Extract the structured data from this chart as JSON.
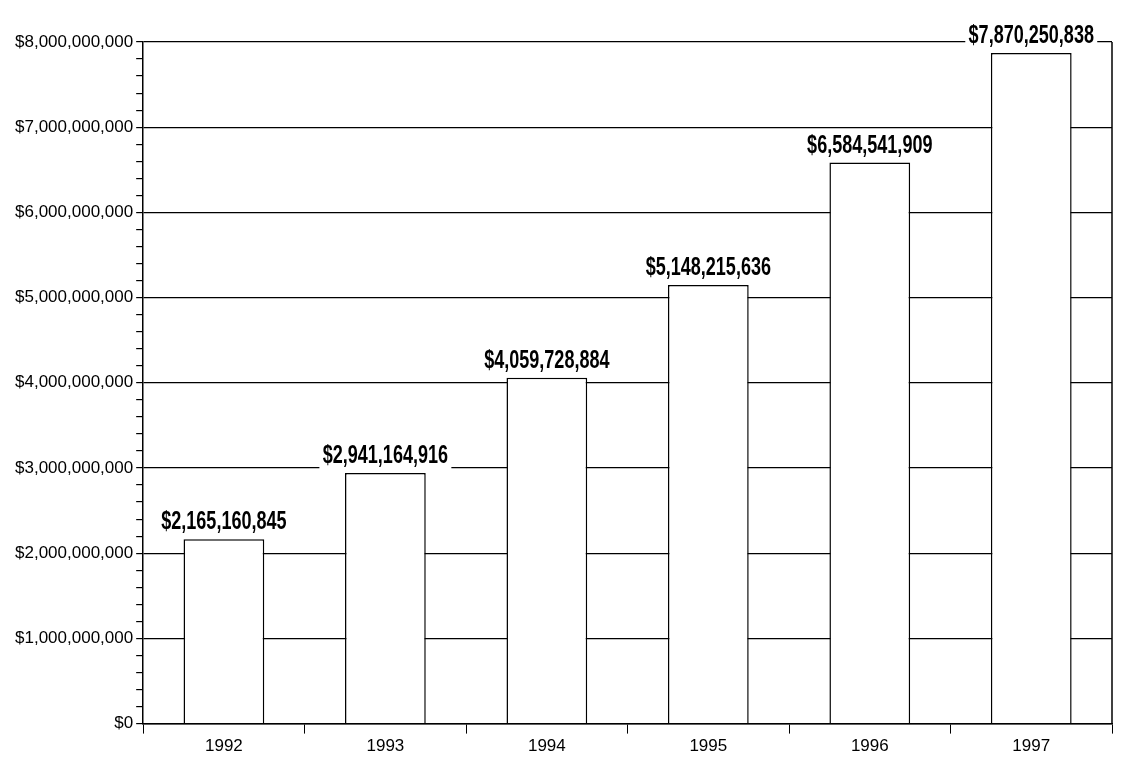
{
  "chart_data": {
    "type": "bar",
    "categories": [
      "1992",
      "1993",
      "1994",
      "1995",
      "1996",
      "1997"
    ],
    "values": [
      2165160845,
      2941164916,
      4059728884,
      5148215636,
      6584541909,
      7870250838
    ],
    "value_labels": [
      "$2,165,160,845",
      "$2,941,164,916",
      "$4,059,728,884",
      "$5,148,215,636",
      "$6,584,541,909",
      "$7,870,250,838"
    ],
    "color": "#ffffff",
    "ylim": [
      0,
      8000000000
    ],
    "yticks": [
      {
        "value": 0,
        "label": "$0"
      },
      {
        "value": 200000000,
        "label": null
      },
      {
        "value": 400000000,
        "label": null
      },
      {
        "value": 600000000,
        "label": null
      },
      {
        "value": 800000000,
        "label": null
      },
      {
        "value": 1000000000,
        "label": "$1,000,000,000"
      },
      {
        "value": 1200000000,
        "label": null
      },
      {
        "value": 1400000000,
        "label": null
      },
      {
        "value": 1600000000,
        "label": null
      },
      {
        "value": 1800000000,
        "label": null
      },
      {
        "value": 2000000000,
        "label": "$2,000,000,000"
      },
      {
        "value": 2200000000,
        "label": null
      },
      {
        "value": 2400000000,
        "label": null
      },
      {
        "value": 2600000000,
        "label": null
      },
      {
        "value": 2800000000,
        "label": null
      },
      {
        "value": 3000000000,
        "label": "$3,000,000,000"
      },
      {
        "value": 3200000000,
        "label": null
      },
      {
        "value": 3400000000,
        "label": null
      },
      {
        "value": 3600000000,
        "label": null
      },
      {
        "value": 3800000000,
        "label": null
      },
      {
        "value": 4000000000,
        "label": "$4,000,000,000"
      },
      {
        "value": 4200000000,
        "label": null
      },
      {
        "value": 4400000000,
        "label": null
      },
      {
        "value": 4600000000,
        "label": null
      },
      {
        "value": 4800000000,
        "label": null
      },
      {
        "value": 5000000000,
        "label": "$5,000,000,000"
      },
      {
        "value": 5200000000,
        "label": null
      },
      {
        "value": 5400000000,
        "label": null
      },
      {
        "value": 5600000000,
        "label": null
      },
      {
        "value": 5800000000,
        "label": null
      },
      {
        "value": 6000000000,
        "label": "$6,000,000,000"
      },
      {
        "value": 6200000000,
        "label": null
      },
      {
        "value": 6400000000,
        "label": null
      },
      {
        "value": 6600000000,
        "label": null
      },
      {
        "value": 6800000000,
        "label": null
      },
      {
        "value": 7000000000,
        "label": "$7,000,000,000"
      },
      {
        "value": 7200000000,
        "label": null
      },
      {
        "value": 7400000000,
        "label": null
      },
      {
        "value": 7600000000,
        "label": null
      },
      {
        "value": 7800000000,
        "label": null
      },
      {
        "value": 8000000000,
        "label": "$8,000,000,000"
      }
    ],
    "grid": "y",
    "legend": false
  }
}
